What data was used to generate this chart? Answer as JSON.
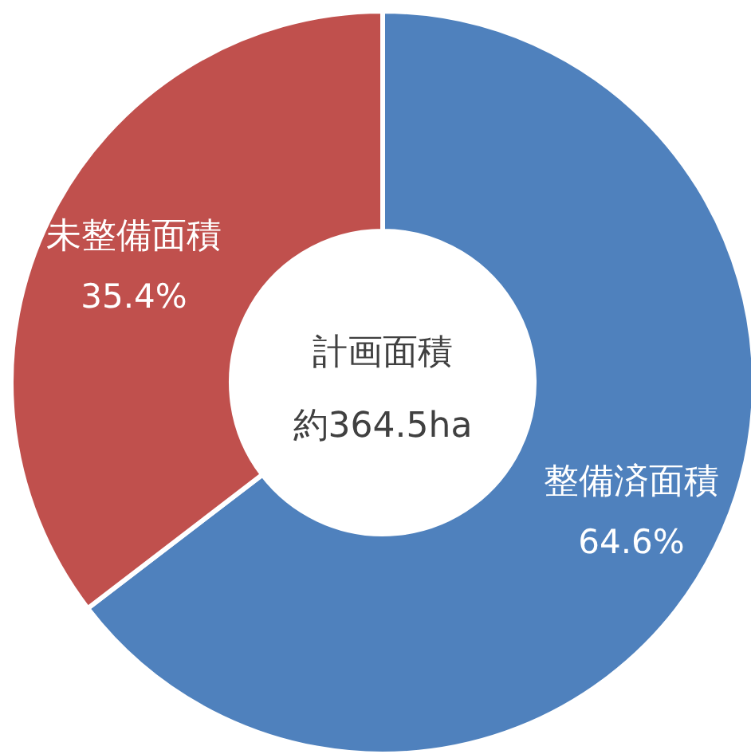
{
  "chart_data": {
    "type": "donut",
    "title": "計画面積",
    "subtitle": "約364.5ha",
    "categories": [
      "整備済面積",
      "未整備面積"
    ],
    "values": [
      64.6,
      35.4
    ],
    "value_labels": [
      "64.6%",
      "35.4%"
    ],
    "colors": [
      "#4f81bd",
      "#c0504d"
    ]
  }
}
